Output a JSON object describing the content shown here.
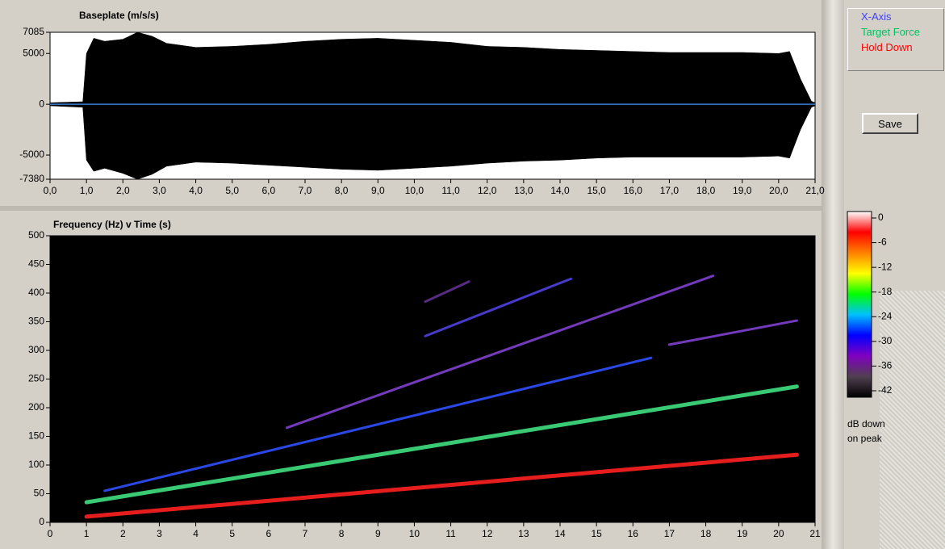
{
  "chart_data": [
    {
      "type": "area",
      "title": "Baseplate (m/s/s)",
      "x": [
        0,
        0.9,
        1.0,
        1.2,
        1.5,
        2.0,
        2.4,
        2.8,
        3.2,
        4,
        5,
        6,
        7,
        8,
        9,
        10,
        11,
        12,
        13,
        14,
        15,
        16,
        17,
        18,
        19,
        20,
        20.3,
        20.6,
        20.9,
        21
      ],
      "series": [
        {
          "color": "#000000",
          "values": [
            150,
            250,
            5000,
            6500,
            6200,
            6400,
            7085,
            6700,
            6000,
            5600,
            5700,
            5900,
            6200,
            6400,
            6500,
            6300,
            6100,
            5700,
            5600,
            5400,
            5300,
            5200,
            5100,
            5100,
            5100,
            5000,
            5200,
            2500,
            300,
            150
          ]
        },
        {
          "color": "#000000",
          "values": [
            -150,
            -300,
            -5500,
            -6600,
            -6300,
            -6800,
            -7380,
            -6900,
            -6100,
            -5700,
            -5800,
            -6000,
            -6200,
            -6400,
            -6500,
            -6300,
            -6100,
            -5800,
            -5600,
            -5500,
            -5300,
            -5200,
            -5200,
            -5200,
            -5200,
            -5100,
            -5300,
            -2500,
            -300,
            -150
          ]
        }
      ],
      "baseline": {
        "value": 0,
        "color": "#3a7bd5"
      },
      "xlim": [
        0,
        21
      ],
      "xticks": [
        {
          "value": 0,
          "label": "0,0"
        },
        {
          "value": 1,
          "label": "1,0"
        },
        {
          "value": 2,
          "label": "2,0"
        },
        {
          "value": 3,
          "label": "3,0"
        },
        {
          "value": 4,
          "label": "4,0"
        },
        {
          "value": 5,
          "label": "5,0"
        },
        {
          "value": 6,
          "label": "6,0"
        },
        {
          "value": 7,
          "label": "7,0"
        },
        {
          "value": 8,
          "label": "8,0"
        },
        {
          "value": 9,
          "label": "9,0"
        },
        {
          "value": 10,
          "label": "10,0"
        },
        {
          "value": 11,
          "label": "11,0"
        },
        {
          "value": 12,
          "label": "12,0"
        },
        {
          "value": 13,
          "label": "13,0"
        },
        {
          "value": 14,
          "label": "14,0"
        },
        {
          "value": 15,
          "label": "15,0"
        },
        {
          "value": 16,
          "label": "16,0"
        },
        {
          "value": 17,
          "label": "17,0"
        },
        {
          "value": 18,
          "label": "18,0"
        },
        {
          "value": 19,
          "label": "19,0"
        },
        {
          "value": 20,
          "label": "20,0"
        },
        {
          "value": 21,
          "label": "21,0"
        }
      ],
      "ylim": [
        -7380,
        7085
      ],
      "yticks": [
        7085,
        5000,
        0,
        -5000,
        -7380
      ],
      "background": "#ffffff"
    },
    {
      "type": "line",
      "title": "Frequency (Hz) v Time (s)",
      "series": [
        {
          "color": "#ff2020",
          "x": [
            1,
            20.5
          ],
          "values": [
            10,
            118
          ]
        },
        {
          "color": "#40e080",
          "x": [
            1,
            20.5
          ],
          "values": [
            35,
            237
          ]
        },
        {
          "color": "#3050ff",
          "x": [
            1.5,
            16.5
          ],
          "values": [
            55,
            287
          ]
        },
        {
          "color": "#8040d0",
          "x": [
            6.5,
            18.2
          ],
          "values": [
            165,
            430
          ]
        },
        {
          "color": "#8040d0",
          "x": [
            17,
            20.5
          ],
          "values": [
            310,
            352
          ]
        },
        {
          "color": "#5040e0",
          "x": [
            10.3,
            14.3
          ],
          "values": [
            325,
            425
          ]
        },
        {
          "color": "#603090",
          "x": [
            10.3,
            11.5
          ],
          "values": [
            385,
            420
          ]
        }
      ],
      "xlim": [
        0,
        21
      ],
      "xticks": [
        0,
        1,
        2,
        3,
        4,
        5,
        6,
        7,
        8,
        9,
        10,
        11,
        12,
        13,
        14,
        15,
        16,
        17,
        18,
        19,
        20,
        21
      ],
      "ylim": [
        0,
        500
      ],
      "yticks": [
        0,
        50,
        100,
        150,
        200,
        250,
        300,
        350,
        400,
        450,
        500
      ],
      "background": "#000000"
    }
  ],
  "legend": {
    "items": [
      {
        "label": "X-Axis",
        "color": "#4040ff"
      },
      {
        "label": "Target Force",
        "color": "#00c060"
      },
      {
        "label": "Hold Down",
        "color": "#ff0000"
      }
    ]
  },
  "save_button": {
    "label": "Save"
  },
  "colorbar": {
    "lim": [
      0,
      -42
    ],
    "ticks": [
      0,
      -6,
      -12,
      -18,
      -24,
      -30,
      -36,
      -42
    ],
    "colors": [
      "#ffffff",
      "#ff0000",
      "#ff8000",
      "#ffff00",
      "#00ff00",
      "#00c0ff",
      "#0000ff",
      "#8000c0",
      "#504050",
      "#000000"
    ],
    "caption": [
      "dB down",
      "on peak"
    ]
  }
}
